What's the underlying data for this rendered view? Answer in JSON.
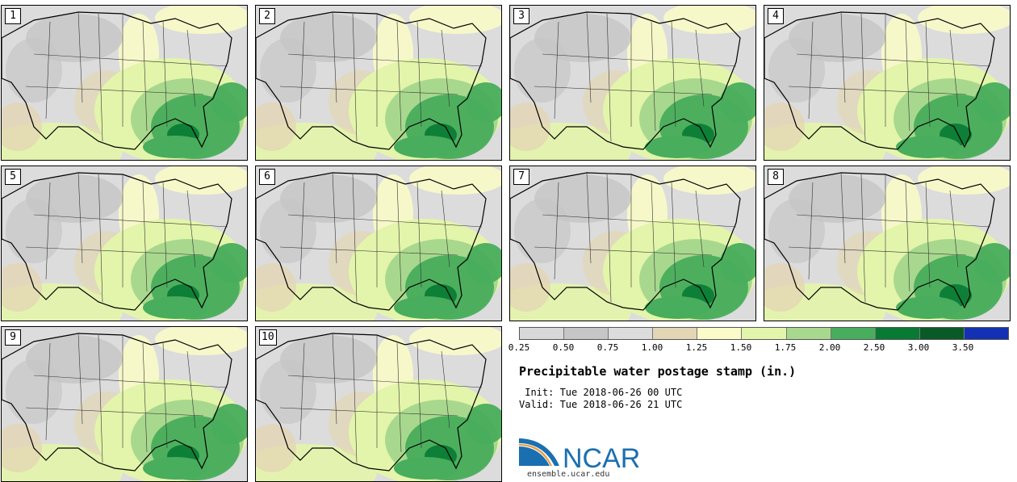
{
  "members": [
    {
      "label": "1"
    },
    {
      "label": "2"
    },
    {
      "label": "3"
    },
    {
      "label": "4"
    },
    {
      "label": "5"
    },
    {
      "label": "6"
    },
    {
      "label": "7"
    },
    {
      "label": "8"
    },
    {
      "label": "9"
    },
    {
      "label": "10"
    }
  ],
  "legend": {
    "colors": [
      "#d8d8d8",
      "#c6c6c6",
      "#dcdcdc",
      "#e3d6b4",
      "#fafbc8",
      "#e3f5aa",
      "#a8d88e",
      "#48ad5c",
      "#087a33",
      "#0a5a28",
      "#1431b4"
    ],
    "ticks": [
      "0.25",
      "0.50",
      "0.75",
      "1.00",
      "1.25",
      "1.50",
      "1.75",
      "2.00",
      "2.50",
      "3.00",
      "3.50"
    ]
  },
  "title": "Precipitable water postage stamp (in.)",
  "init_text": " Init: Tue 2018-06-26 00 UTC",
  "valid_text": "Valid: Tue 2018-06-26 21 UTC",
  "logo": {
    "name": "NCAR",
    "url": "ensemble.ucar.edu",
    "color": "#1a6fb0"
  }
}
